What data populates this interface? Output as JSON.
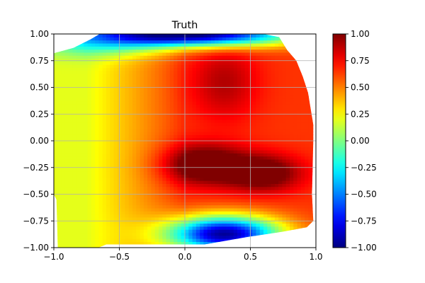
{
  "chart_data": {
    "type": "heatmap",
    "title": "Truth",
    "xlabel": "",
    "ylabel": "",
    "xlim": [
      -1.0,
      1.0
    ],
    "ylim": [
      -1.0,
      1.0
    ],
    "x_ticks": [
      -1.0,
      -0.5,
      0.0,
      0.5,
      1.0
    ],
    "x_tick_labels": [
      "−1.0",
      "−0.5",
      "0.0",
      "0.5",
      "1.0"
    ],
    "y_ticks": [
      1.0,
      0.75,
      0.5,
      0.25,
      0.0,
      -0.25,
      -0.5,
      -0.75,
      -1.0
    ],
    "y_tick_labels": [
      "1.00",
      "0.75",
      "0.50",
      "0.25",
      "0.00",
      "−0.25",
      "−0.50",
      "−0.75",
      "−1.00"
    ],
    "grid": true,
    "colormap": "jet",
    "colorbar": {
      "range": [
        -1.0,
        1.0
      ],
      "ticks": [
        1.0,
        0.75,
        0.5,
        0.25,
        0.0,
        -0.25,
        -0.5,
        -0.75,
        -1.0
      ],
      "tick_labels": [
        "1.00",
        "0.75",
        "0.50",
        "0.25",
        "0.00",
        "−0.25",
        "−0.50",
        "−0.75",
        "−1.00"
      ]
    },
    "field": {
      "components": [
        {
          "kind": "base",
          "value": 0.2
        },
        {
          "kind": "ramp_x",
          "from_x": -0.75,
          "to_x": 0.0,
          "amplitude": 0.45
        },
        {
          "kind": "gaussian",
          "x": 0.15,
          "y": -0.22,
          "sx": 0.22,
          "sy": 0.13,
          "amplitude": 0.55
        },
        {
          "kind": "gaussian",
          "x": 0.6,
          "y": -0.3,
          "sx": 0.2,
          "sy": 0.12,
          "amplitude": 0.5
        },
        {
          "kind": "gaussian",
          "x": 0.3,
          "y": 0.55,
          "sx": 0.18,
          "sy": 0.25,
          "amplitude": 0.25
        },
        {
          "kind": "gaussian",
          "x": 0.3,
          "y": -0.87,
          "sx": 0.3,
          "sy": 0.12,
          "amplitude": -1.6
        },
        {
          "kind": "gaussian",
          "x": 0.05,
          "y": 1.0,
          "sx": 0.55,
          "sy": 0.08,
          "amplitude": -1.7
        },
        {
          "kind": "gaussian",
          "x": -0.6,
          "y": 0.88,
          "sx": 0.35,
          "sy": 0.08,
          "amplitude": -0.25
        }
      ],
      "clip": [
        -1.0,
        1.0
      ]
    },
    "domain_outline": [
      [
        -0.98,
        -1.0
      ],
      [
        -0.66,
        -1.0
      ],
      [
        -0.6,
        -0.97
      ],
      [
        0.15,
        -0.97
      ],
      [
        0.48,
        -0.9
      ],
      [
        0.75,
        -0.85
      ],
      [
        0.93,
        -0.81
      ],
      [
        0.98,
        -0.75
      ],
      [
        0.97,
        -0.5
      ],
      [
        0.98,
        0.0
      ],
      [
        0.98,
        0.15
      ],
      [
        0.96,
        0.3
      ],
      [
        0.94,
        0.45
      ],
      [
        0.9,
        0.6
      ],
      [
        0.85,
        0.75
      ],
      [
        0.78,
        0.85
      ],
      [
        0.72,
        0.97
      ],
      [
        0.6,
        1.0
      ],
      [
        -0.65,
        1.0
      ],
      [
        -0.72,
        0.95
      ],
      [
        -0.85,
        0.87
      ],
      [
        -1.0,
        0.82
      ],
      [
        -1.0,
        -0.5
      ],
      [
        -0.98,
        -0.55
      ],
      [
        -0.97,
        -1.0
      ]
    ]
  },
  "colors": {
    "grid": "#b0b0b0",
    "axes": "#000000",
    "background": "#ffffff"
  }
}
